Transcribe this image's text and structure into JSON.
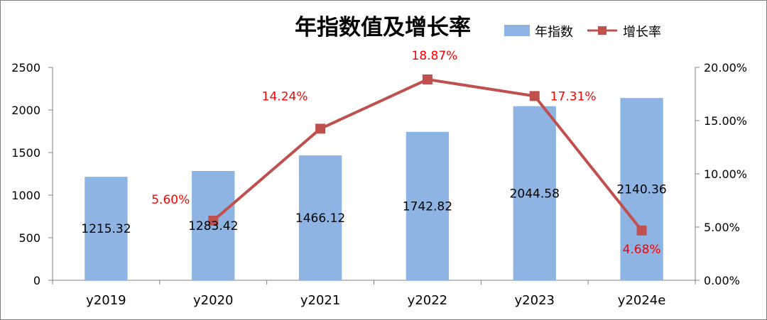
{
  "chart_data": {
    "type": "bar",
    "title": "年指数值及增长率",
    "categories": [
      "y2019",
      "y2020",
      "y2021",
      "y2022",
      "y2023",
      "y2024e"
    ],
    "series": [
      {
        "name": "年指数",
        "type": "bar",
        "axis": "left",
        "values": [
          1215.32,
          1283.42,
          1466.12,
          1742.82,
          2044.58,
          2140.36
        ],
        "labels": [
          "1215.32",
          "1283.42",
          "1466.12",
          "1742.82",
          "2044.58",
          "2140.36"
        ],
        "color": "#8db4e2"
      },
      {
        "name": "增长率",
        "type": "line",
        "axis": "right",
        "values": [
          null,
          5.6,
          14.24,
          18.87,
          17.31,
          4.68
        ],
        "labels": [
          null,
          "5.60%",
          "14.24%",
          "18.87%",
          "17.31%",
          "4.68%"
        ],
        "color": "#c0504d",
        "label_color": "#ff0000"
      }
    ],
    "y_left": {
      "ylim": [
        0,
        2500
      ],
      "ticks": [
        0,
        500,
        1000,
        1500,
        2000,
        2500
      ],
      "tick_labels": [
        "0",
        "500",
        "1000",
        "1500",
        "2000",
        "2500"
      ]
    },
    "y_right": {
      "ylim": [
        0,
        20
      ],
      "ticks": [
        0,
        5,
        10,
        15,
        20
      ],
      "tick_labels": [
        "0.00%",
        "5.00%",
        "10.00%",
        "15.00%",
        "20.00%"
      ]
    },
    "grid": false,
    "legend_position": "top-right"
  }
}
